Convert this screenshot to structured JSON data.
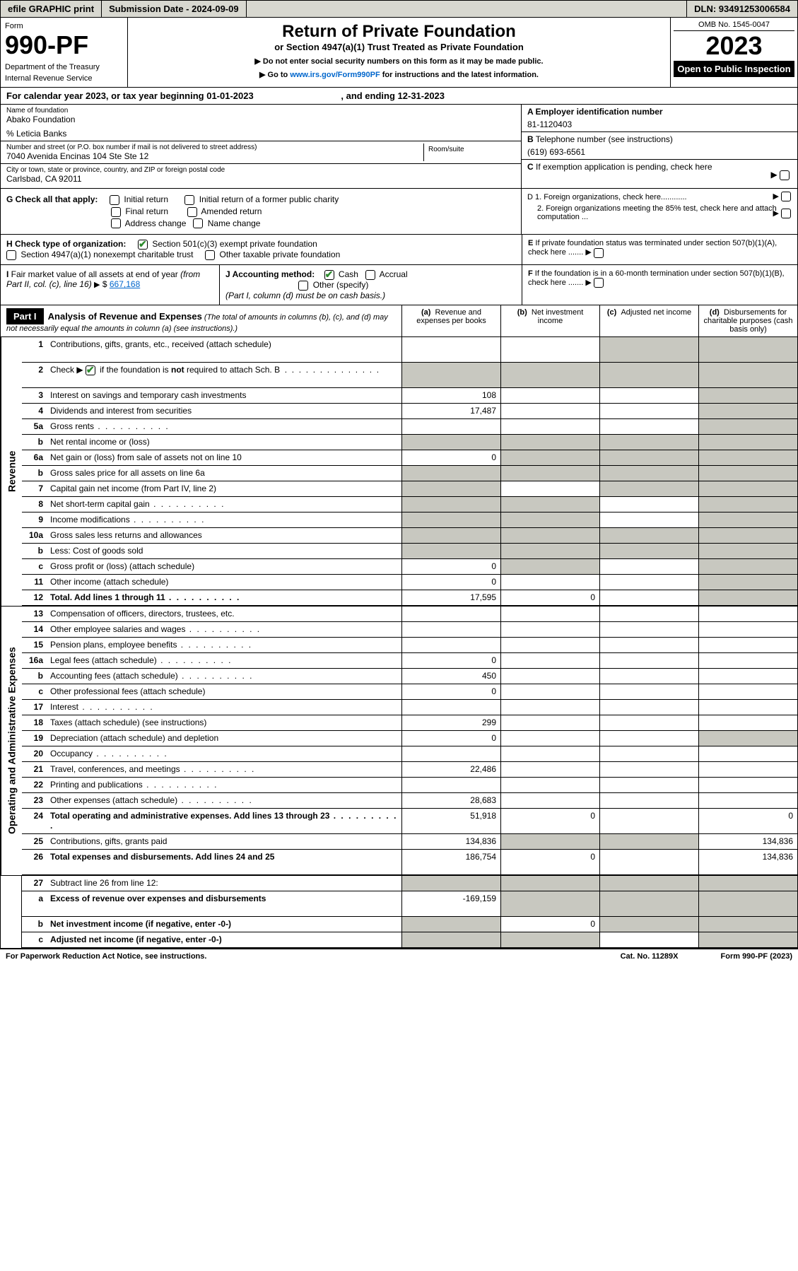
{
  "topbar": {
    "efile": "efile GRAPHIC print",
    "submission_label": "Submission Date - 2024-09-09",
    "dln": "DLN: 93491253006584"
  },
  "header": {
    "form_word": "Form",
    "form_num": "990-PF",
    "dept": "Department of the Treasury",
    "irs": "Internal Revenue Service",
    "title": "Return of Private Foundation",
    "subtitle": "or Section 4947(a)(1) Trust Treated as Private Foundation",
    "instr1": "▶ Do not enter social security numbers on this form as it may be made public.",
    "instr2": "▶ Go to www.irs.gov/Form990PF for instructions and the latest information.",
    "link": "www.irs.gov/Form990PF",
    "omb": "OMB No. 1545-0047",
    "year": "2023",
    "open": "Open to Public Inspection"
  },
  "period": {
    "begin": "For calendar year 2023, or tax year beginning 01-01-2023",
    "end": ", and ending 12-31-2023"
  },
  "info": {
    "name_label": "Name of foundation",
    "foundation": "Abako Foundation",
    "care_of": "% Leticia Banks",
    "addr_label": "Number and street (or P.O. box number if mail is not delivered to street address)",
    "addr": "7040 Avenida Encinas 104 Ste Ste 12",
    "room_label": "Room/suite",
    "city_label": "City or town, state or province, country, and ZIP or foreign postal code",
    "city": "Carlsbad, CA  92011",
    "a_label": "A Employer identification number",
    "a_val": "81-1120403",
    "b_label": "B Telephone number (see instructions)",
    "b_val": "(619) 693-6561",
    "c_label": "C If exemption application is pending, check here"
  },
  "g": {
    "label": "G Check all that apply:",
    "initial": "Initial return",
    "initial_former": "Initial return of a former public charity",
    "final": "Final return",
    "amended": "Amended return",
    "addr_change": "Address change",
    "name_change": "Name change"
  },
  "d": {
    "d1": "D 1. Foreign organizations, check here............",
    "d2": "2. Foreign organizations meeting the 85% test, check here and attach computation ..."
  },
  "h": {
    "label": "H Check type of organization:",
    "opt1": "Section 501(c)(3) exempt private foundation",
    "opt2": "Section 4947(a)(1) nonexempt charitable trust",
    "opt3": "Other taxable private foundation"
  },
  "e": {
    "text": "E  If private foundation status was terminated under section 507(b)(1)(A), check here ......."
  },
  "i": {
    "label": "I Fair market value of all assets at end of year (from Part II, col. (c), line 16)",
    "value_prefix": "▶ $",
    "value": "667,168"
  },
  "j": {
    "label": "J Accounting method:",
    "cash": "Cash",
    "accrual": "Accrual",
    "other": "Other (specify)",
    "note": "(Part I, column (d) must be on cash basis.)"
  },
  "f": {
    "text": "F  If the foundation is in a 60-month termination under section 507(b)(1)(B), check here ......."
  },
  "part1": {
    "label": "Part I",
    "title": "Analysis of Revenue and Expenses",
    "title_note": "(The total of amounts in columns (b), (c), and (d) may not necessarily equal the amounts in column (a) (see instructions).)",
    "col_a": "(a)   Revenue and expenses per books",
    "col_b": "(b)   Net investment income",
    "col_c": "(c)   Adjusted net income",
    "col_d": "(d)   Disbursements for charitable purposes (cash basis only)"
  },
  "sections": {
    "revenue": "Revenue",
    "expenses": "Operating and Administrative Expenses"
  },
  "rows": [
    {
      "n": "1",
      "d": "Contributions, gifts, grants, etc., received (attach schedule)",
      "a": "",
      "b": "",
      "c": "g",
      "dd": "g",
      "tall": true
    },
    {
      "n": "2",
      "d": "Check ▶ ☑ if the foundation is not required to attach Sch. B",
      "a": "g",
      "b": "g",
      "c": "g",
      "dd": "g",
      "tall": true,
      "bold_not": true
    },
    {
      "n": "3",
      "d": "Interest on savings and temporary cash investments",
      "a": "108",
      "b": "",
      "c": "",
      "dd": "g"
    },
    {
      "n": "4",
      "d": "Dividends and interest from securities",
      "a": "17,487",
      "b": "",
      "c": "",
      "dd": "g"
    },
    {
      "n": "5a",
      "d": "Gross rents",
      "a": "",
      "b": "",
      "c": "",
      "dd": "g",
      "dots": true
    },
    {
      "n": "b",
      "d": "Net rental income or (loss)",
      "a": "g",
      "b": "g",
      "c": "g",
      "dd": "g"
    },
    {
      "n": "6a",
      "d": "Net gain or (loss) from sale of assets not on line 10",
      "a": "0",
      "b": "g",
      "c": "g",
      "dd": "g"
    },
    {
      "n": "b",
      "d": "Gross sales price for all assets on line 6a",
      "a": "g",
      "b": "g",
      "c": "g",
      "dd": "g"
    },
    {
      "n": "7",
      "d": "Capital gain net income (from Part IV, line 2)",
      "a": "g",
      "b": "",
      "c": "g",
      "dd": "g"
    },
    {
      "n": "8",
      "d": "Net short-term capital gain",
      "a": "g",
      "b": "g",
      "c": "",
      "dd": "g",
      "dots": true
    },
    {
      "n": "9",
      "d": "Income modifications",
      "a": "g",
      "b": "g",
      "c": "",
      "dd": "g",
      "dots": true
    },
    {
      "n": "10a",
      "d": "Gross sales less returns and allowances",
      "a": "g",
      "b": "g",
      "c": "g",
      "dd": "g"
    },
    {
      "n": "b",
      "d": "Less: Cost of goods sold",
      "a": "g",
      "b": "g",
      "c": "g",
      "dd": "g"
    },
    {
      "n": "c",
      "d": "Gross profit or (loss) (attach schedule)",
      "a": "0",
      "b": "g",
      "c": "",
      "dd": "g"
    },
    {
      "n": "11",
      "d": "Other income (attach schedule)",
      "a": "0",
      "b": "",
      "c": "",
      "dd": "g"
    },
    {
      "n": "12",
      "d": "Total. Add lines 1 through 11",
      "a": "17,595",
      "b": "0",
      "c": "",
      "dd": "g",
      "bold": true,
      "dots": true
    }
  ],
  "exp_rows": [
    {
      "n": "13",
      "d": "Compensation of officers, directors, trustees, etc.",
      "a": "",
      "b": "",
      "c": "",
      "dd": ""
    },
    {
      "n": "14",
      "d": "Other employee salaries and wages",
      "a": "",
      "b": "",
      "c": "",
      "dd": "",
      "dots": true
    },
    {
      "n": "15",
      "d": "Pension plans, employee benefits",
      "a": "",
      "b": "",
      "c": "",
      "dd": "",
      "dots": true
    },
    {
      "n": "16a",
      "d": "Legal fees (attach schedule)",
      "a": "0",
      "b": "",
      "c": "",
      "dd": "",
      "dots": true
    },
    {
      "n": "b",
      "d": "Accounting fees (attach schedule)",
      "a": "450",
      "b": "",
      "c": "",
      "dd": "",
      "dots": true
    },
    {
      "n": "c",
      "d": "Other professional fees (attach schedule)",
      "a": "0",
      "b": "",
      "c": "",
      "dd": ""
    },
    {
      "n": "17",
      "d": "Interest",
      "a": "",
      "b": "",
      "c": "",
      "dd": "",
      "dots": true
    },
    {
      "n": "18",
      "d": "Taxes (attach schedule) (see instructions)",
      "a": "299",
      "b": "",
      "c": "",
      "dd": ""
    },
    {
      "n": "19",
      "d": "Depreciation (attach schedule) and depletion",
      "a": "0",
      "b": "",
      "c": "",
      "dd": "g"
    },
    {
      "n": "20",
      "d": "Occupancy",
      "a": "",
      "b": "",
      "c": "",
      "dd": "",
      "dots": true
    },
    {
      "n": "21",
      "d": "Travel, conferences, and meetings",
      "a": "22,486",
      "b": "",
      "c": "",
      "dd": "",
      "dots": true
    },
    {
      "n": "22",
      "d": "Printing and publications",
      "a": "",
      "b": "",
      "c": "",
      "dd": "",
      "dots": true
    },
    {
      "n": "23",
      "d": "Other expenses (attach schedule)",
      "a": "28,683",
      "b": "",
      "c": "",
      "dd": "",
      "dots": true
    },
    {
      "n": "24",
      "d": "Total operating and administrative expenses. Add lines 13 through 23",
      "a": "51,918",
      "b": "0",
      "c": "",
      "dd": "0",
      "bold": true,
      "tall": true,
      "dots": true
    },
    {
      "n": "25",
      "d": "Contributions, gifts, grants paid",
      "a": "134,836",
      "b": "g",
      "c": "g",
      "dd": "134,836"
    },
    {
      "n": "26",
      "d": "Total expenses and disbursements. Add lines 24 and 25",
      "a": "186,754",
      "b": "0",
      "c": "",
      "dd": "134,836",
      "bold": true,
      "tall": true
    }
  ],
  "net_rows": [
    {
      "n": "27",
      "d": "Subtract line 26 from line 12:",
      "a": "g",
      "b": "g",
      "c": "g",
      "dd": "g"
    },
    {
      "n": "a",
      "d": "Excess of revenue over expenses and disbursements",
      "a": "-169,159",
      "b": "g",
      "c": "g",
      "dd": "g",
      "bold": true,
      "tall": true
    },
    {
      "n": "b",
      "d": "Net investment income (if negative, enter -0-)",
      "a": "g",
      "b": "0",
      "c": "g",
      "dd": "g",
      "bold": true
    },
    {
      "n": "c",
      "d": "Adjusted net income (if negative, enter -0-)",
      "a": "g",
      "b": "g",
      "c": "",
      "dd": "g",
      "bold": true
    }
  ],
  "footer": {
    "left": "For Paperwork Reduction Act Notice, see instructions.",
    "mid": "Cat. No. 11289X",
    "right": "Form 990-PF (2023)"
  }
}
